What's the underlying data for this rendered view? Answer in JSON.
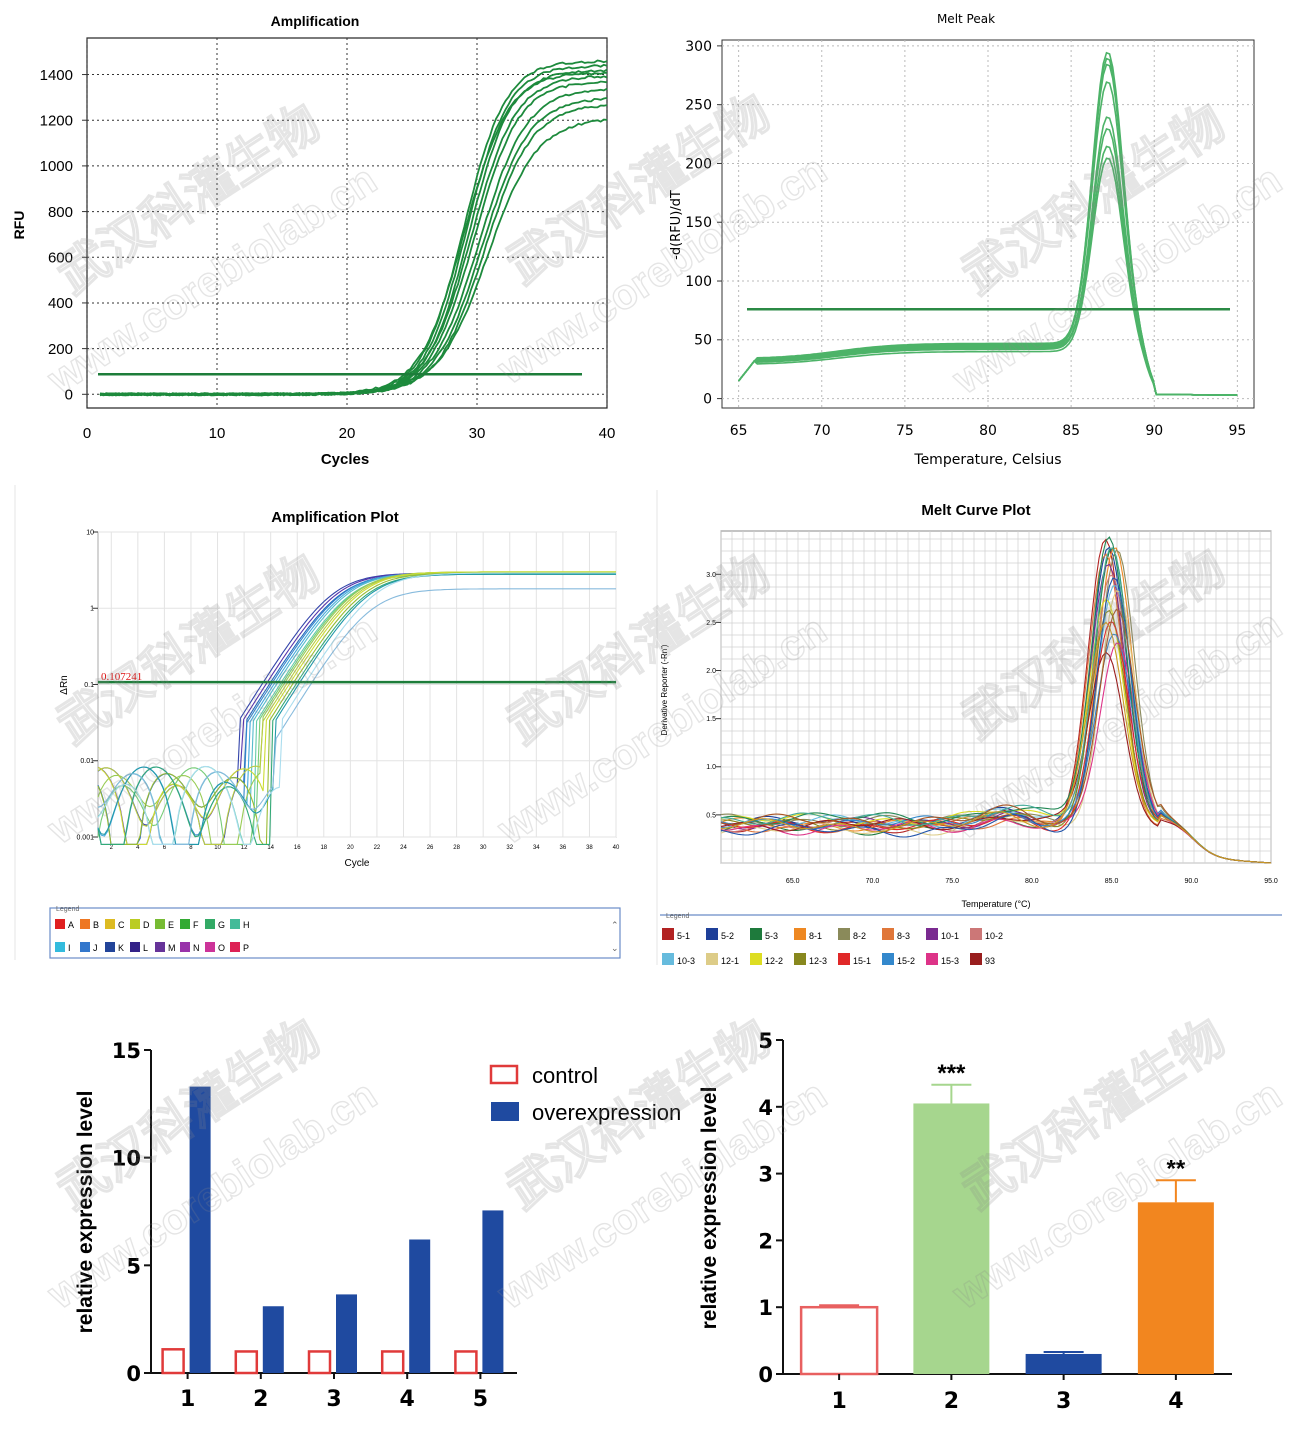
{
  "watermark": {
    "cn": "武汉科灌生物",
    "url": "www.corebiolab.cn"
  },
  "chart_data": [
    {
      "id": "amp1",
      "type": "line",
      "title": "Amplification",
      "xlabel": "Cycles",
      "ylabel": "RFU",
      "xlim": [
        0,
        40
      ],
      "ylim": [
        -60,
        1560
      ],
      "xticks": [
        0,
        10,
        20,
        30,
        40
      ],
      "yticks": [
        0,
        200,
        400,
        600,
        800,
        1000,
        1200,
        1400
      ],
      "grid": true,
      "threshold": 88,
      "curve_model": "sigmoid",
      "x_range": [
        1,
        40
      ],
      "series": [
        {
          "plateau": 1460,
          "midpoint": 29.0,
          "slope": 1.6
        },
        {
          "plateau": 1440,
          "midpoint": 29.2,
          "slope": 1.6
        },
        {
          "plateau": 1420,
          "midpoint": 29.4,
          "slope": 1.6
        },
        {
          "plateau": 1410,
          "midpoint": 29.0,
          "slope": 1.7
        },
        {
          "plateau": 1395,
          "midpoint": 29.6,
          "slope": 1.7
        },
        {
          "plateau": 1370,
          "midpoint": 29.8,
          "slope": 1.7
        },
        {
          "plateau": 1340,
          "midpoint": 30.2,
          "slope": 1.8
        },
        {
          "plateau": 1300,
          "midpoint": 30.4,
          "slope": 1.8
        },
        {
          "plateau": 1270,
          "midpoint": 30.6,
          "slope": 1.8
        },
        {
          "plateau": 1210,
          "midpoint": 30.8,
          "slope": 1.9
        }
      ]
    },
    {
      "id": "melt1",
      "type": "line",
      "title": "Melt Peak",
      "xlabel": "Temperature, Celsius",
      "ylabel": "-d(RFU)/dT",
      "xlim": [
        64,
        96
      ],
      "ylim": [
        -8,
        305
      ],
      "xticks": [
        65,
        70,
        75,
        80,
        85,
        90,
        95
      ],
      "yticks": [
        0,
        50,
        100,
        150,
        200,
        250,
        300
      ],
      "grid": true,
      "threshold": 76,
      "curve_model": "melt_peak",
      "x_range": [
        65,
        95
      ],
      "series": [
        {
          "peak": 295,
          "base": 45
        },
        {
          "peak": 290,
          "base": 46
        },
        {
          "peak": 285,
          "base": 44
        },
        {
          "peak": 270,
          "base": 47
        },
        {
          "peak": 240,
          "base": 43
        },
        {
          "peak": 230,
          "base": 42
        },
        {
          "peak": 215,
          "base": 44
        },
        {
          "peak": 205,
          "base": 40
        }
      ]
    },
    {
      "id": "amp2",
      "type": "line",
      "title": "Amplification Plot",
      "xlabel": "Cycle",
      "ylabel": "ΔRn",
      "xlim": [
        1,
        40
      ],
      "yscale": "log",
      "ylim": [
        0.001,
        10
      ],
      "xticks": [
        2,
        4,
        6,
        8,
        10,
        12,
        14,
        16,
        18,
        20,
        22,
        24,
        26,
        28,
        30,
        32,
        34,
        36,
        38,
        40
      ],
      "yticks": [
        0.001,
        0.01,
        0.1,
        1,
        10
      ],
      "ytick_labels": [
        "0.001",
        "0.01",
        "0.1",
        "1",
        "10"
      ],
      "grid": true,
      "threshold": 0.107241,
      "threshold_label": "0.107241",
      "curve_model": "sigmoid_log",
      "x_range": [
        1,
        40
      ],
      "series_colors": [
        "#3344aa",
        "#5533aa",
        "#2266bb",
        "#3388cc",
        "#44aadd",
        "#55bbcc",
        "#66ccaa",
        "#77cc77",
        "#99cc55",
        "#bbcc44",
        "#ccdd33",
        "#99bb33",
        "#33aa77",
        "#2299aa",
        "#88bbdd",
        "#aaddee"
      ],
      "series": [
        {
          "plateau": 2.9,
          "midpoint": 18.5,
          "slope": 1.55
        },
        {
          "plateau": 2.9,
          "midpoint": 18.8,
          "slope": 1.55
        },
        {
          "plateau": 2.8,
          "midpoint": 19.0,
          "slope": 1.55
        },
        {
          "plateau": 2.9,
          "midpoint": 19.2,
          "slope": 1.55
        },
        {
          "plateau": 2.9,
          "midpoint": 19.4,
          "slope": 1.55
        },
        {
          "plateau": 2.9,
          "midpoint": 19.6,
          "slope": 1.55
        },
        {
          "plateau": 2.8,
          "midpoint": 19.8,
          "slope": 1.55
        },
        {
          "plateau": 2.9,
          "midpoint": 20.0,
          "slope": 1.55
        },
        {
          "plateau": 3.0,
          "midpoint": 20.2,
          "slope": 1.55
        },
        {
          "plateau": 3.0,
          "midpoint": 20.4,
          "slope": 1.55
        },
        {
          "plateau": 3.0,
          "midpoint": 20.6,
          "slope": 1.55
        },
        {
          "plateau": 2.9,
          "midpoint": 20.8,
          "slope": 1.55
        },
        {
          "plateau": 2.8,
          "midpoint": 21.0,
          "slope": 1.55
        },
        {
          "plateau": 2.8,
          "midpoint": 21.2,
          "slope": 1.55
        },
        {
          "plateau": 1.8,
          "midpoint": 21.4,
          "slope": 1.55
        },
        {
          "plateau": 2.9,
          "midpoint": 21.7,
          "slope": 1.55
        }
      ],
      "legend_title": "Legend",
      "legend": [
        [
          {
            "label": "A",
            "color": "#e02020"
          },
          {
            "label": "B",
            "color": "#ee7722"
          },
          {
            "label": "C",
            "color": "#ddbb22"
          },
          {
            "label": "D",
            "color": "#bbcc22"
          },
          {
            "label": "E",
            "color": "#77bb33"
          },
          {
            "label": "F",
            "color": "#33aa33"
          },
          {
            "label": "G",
            "color": "#33aa66"
          },
          {
            "label": "H",
            "color": "#44bb99"
          }
        ],
        [
          {
            "label": "I",
            "color": "#33bbdd"
          },
          {
            "label": "J",
            "color": "#3377cc"
          },
          {
            "label": "K",
            "color": "#224499"
          },
          {
            "label": "L",
            "color": "#332288"
          },
          {
            "label": "M",
            "color": "#663399"
          },
          {
            "label": "N",
            "color": "#9933aa"
          },
          {
            "label": "O",
            "color": "#cc3399"
          },
          {
            "label": "P",
            "color": "#dd2255"
          }
        ]
      ]
    },
    {
      "id": "melt2",
      "type": "line",
      "title": "Melt Curve Plot",
      "xlabel": "Temperature (°C)",
      "ylabel": "Derivative Reporter (-Rn')",
      "xlim": [
        60.5,
        95
      ],
      "ylim": [
        0,
        3.45
      ],
      "xticks": [
        65,
        70,
        75,
        80,
        85,
        90,
        95
      ],
      "xtick_labels": [
        "65.0",
        "70.0",
        "75.0",
        "80.0",
        "85.0",
        "90.0",
        "95.0"
      ],
      "yticks": [
        0.5,
        1.0,
        1.5,
        2.0,
        2.5,
        3.0
      ],
      "ytick_labels": [
        "0.5",
        "1.0",
        "1.5",
        "2.0",
        "2.5",
        "3.0"
      ],
      "grid": true,
      "curve_model": "melt_peak2",
      "x_range": [
        60.5,
        95
      ],
      "series_colors": [
        "#b22222",
        "#1e3f99",
        "#1e7a3c",
        "#ee8822",
        "#8a8a5a",
        "#e0773a",
        "#7a2a90",
        "#cc7777",
        "#66bbdd",
        "#ddcc88",
        "#dddd22",
        "#88881e",
        "#e02828",
        "#3388cc",
        "#dd3388",
        "#991e1e",
        "#228855",
        "#44aa99",
        "#2255aa",
        "#aa5522",
        "#cc9922"
      ],
      "series": [
        {
          "peak": 3.4,
          "base": 0.38
        },
        {
          "peak": 3.35,
          "base": 0.42
        },
        {
          "peak": 3.3,
          "base": 0.36
        },
        {
          "peak": 3.25,
          "base": 0.4
        },
        {
          "peak": 3.2,
          "base": 0.44
        },
        {
          "peak": 3.15,
          "base": 0.37
        },
        {
          "peak": 3.1,
          "base": 0.41
        },
        {
          "peak": 3.05,
          "base": 0.39
        },
        {
          "peak": 2.95,
          "base": 0.43
        },
        {
          "peak": 2.85,
          "base": 0.35
        },
        {
          "peak": 2.75,
          "base": 0.45
        },
        {
          "peak": 2.6,
          "base": 0.4
        },
        {
          "peak": 2.5,
          "base": 0.38
        },
        {
          "peak": 2.4,
          "base": 0.42
        },
        {
          "peak": 2.3,
          "base": 0.36
        },
        {
          "peak": 2.2,
          "base": 0.4
        },
        {
          "peak": 3.38,
          "base": 0.47
        },
        {
          "peak": 3.28,
          "base": 0.46
        },
        {
          "peak": 3.0,
          "base": 0.34
        },
        {
          "peak": 2.7,
          "base": 0.44
        },
        {
          "peak": 2.55,
          "base": 0.39
        }
      ],
      "legend_title": "Legend",
      "legend": [
        [
          {
            "label": "5-1",
            "color": "#b22222"
          },
          {
            "label": "5-2",
            "color": "#1e3f99"
          },
          {
            "label": "5-3",
            "color": "#1e7a3c"
          },
          {
            "label": "8-1",
            "color": "#ee8822"
          },
          {
            "label": "8-2",
            "color": "#8a8a5a"
          },
          {
            "label": "8-3",
            "color": "#e0773a"
          },
          {
            "label": "10-1",
            "color": "#7a2a90"
          },
          {
            "label": "10-2",
            "color": "#cc7777"
          }
        ],
        [
          {
            "label": "10-3",
            "color": "#66bbdd"
          },
          {
            "label": "12-1",
            "color": "#ddcc88"
          },
          {
            "label": "12-2",
            "color": "#dddd22"
          },
          {
            "label": "12-3",
            "color": "#88881e"
          },
          {
            "label": "15-1",
            "color": "#e02828"
          },
          {
            "label": "15-2",
            "color": "#3388cc"
          },
          {
            "label": "15-3",
            "color": "#dd3388"
          },
          {
            "label": "93",
            "color": "#991e1e"
          }
        ]
      ]
    },
    {
      "id": "bar1",
      "type": "bar",
      "categories": [
        "1",
        "2",
        "3",
        "4",
        "5"
      ],
      "series": [
        {
          "name": "control",
          "values": [
            1.1,
            1.0,
            1.0,
            1.0,
            1.0
          ],
          "color": "#e03a3a",
          "fill": "none"
        },
        {
          "name": "overexpression",
          "values": [
            13.3,
            3.1,
            3.65,
            6.2,
            7.55
          ],
          "color": "#1f4aa0",
          "fill": "#1f4aa0"
        }
      ],
      "ylabel": "relative expression level",
      "ylim": [
        0,
        15
      ],
      "yticks": [
        0,
        5,
        10,
        15
      ],
      "legend": "top-right"
    },
    {
      "id": "bar2",
      "type": "bar",
      "categories": [
        "1",
        "2",
        "3",
        "4"
      ],
      "values": [
        1.0,
        4.05,
        0.3,
        2.57
      ],
      "errors": [
        0.03,
        0.28,
        0.03,
        0.33
      ],
      "colors": [
        "#e86060",
        "#a6d68e",
        "#1f4aa0",
        "#f2861f"
      ],
      "fills": [
        "none",
        "#a6d68e",
        "#1f4aa0",
        "#f2861f"
      ],
      "annotations": [
        "",
        "***",
        "",
        "**"
      ],
      "ylabel": "relative expression level",
      "ylim": [
        0,
        5
      ],
      "yticks": [
        0,
        1,
        2,
        3,
        4,
        5
      ]
    }
  ]
}
